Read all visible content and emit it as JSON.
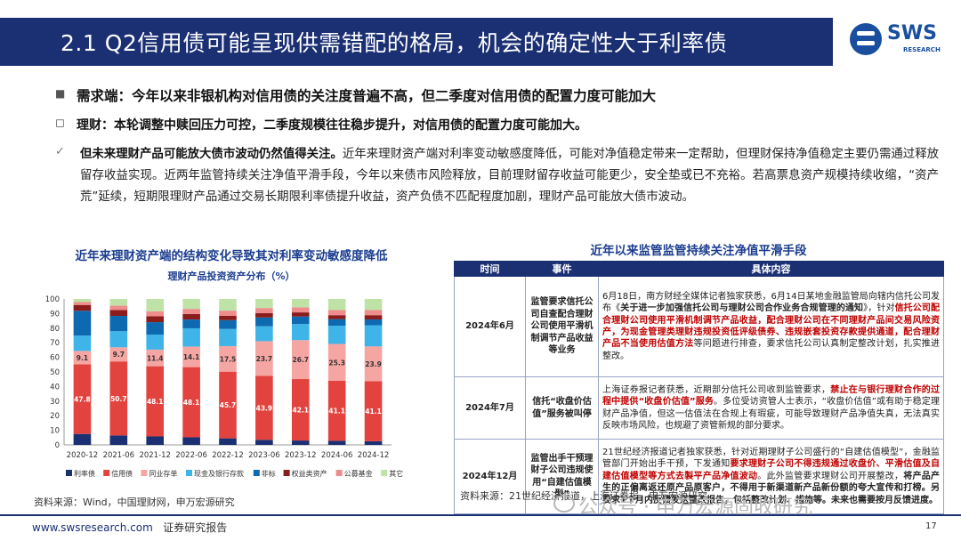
{
  "header": {
    "title": "2.1 Q2信用债可能呈现供需错配的格局，机会的确定性大于利率债",
    "logo_text": "SWS",
    "logo_sub": "RESEARCH"
  },
  "bullets": {
    "b1_marker": "■",
    "b1": "需求端：今年以来非银机构对信用债的关注度普遍不高，但二季度对信用债的配置力度可能加大",
    "b2_marker": "◻",
    "b2": "理财：本轮调整中赎回压力可控，二季度规模往往稳步提升，对信用债的配置力度可能加大。",
    "b3_marker": "✓",
    "b3_lead": "但未来理财产品可能放大债市波动仍然值得关注。",
    "b3_text": "近年来理财资产端对利率变动敏感度降低，可能对净值稳定带来一定帮助，但理财保持净值稳定主要仍需通过释放留存收益实现。近两年监管持续关注净值平滑手段，今年以来债市风险释放，目前理财留存收益可能更少，安全垫或已不充裕。若高票息资产规模持续收缩，“资产荒”延续，短期限理财产品通过交易长期限利率债提升收益，资产负债不匹配程度加剧，理财产品可能放大债市波动。"
  },
  "chart_title": "近年来理财资产端的结构变化导致其对利率变动敏感度降低",
  "chart_data": {
    "type": "bar",
    "stacked": true,
    "title": "理财产品投资资产分布（%）",
    "xlabel": "",
    "ylabel": "",
    "ylim": [
      0,
      100
    ],
    "yticks": [
      0,
      10,
      20,
      30,
      40,
      50,
      60,
      70,
      80,
      90,
      100
    ],
    "grid": false,
    "legend_position": "bottom",
    "categories": [
      "2020-12",
      "2021-06",
      "2021-12",
      "2022-06",
      "2022-12",
      "2023-06",
      "2023-12",
      "2024-06",
      "2024-12"
    ],
    "series": [
      {
        "name": "利率债",
        "color": "#1b2f73",
        "values": [
          7.5,
          6.5,
          5.8,
          5.2,
          4.5,
          3.5,
          3.0,
          2.8,
          2.5
        ]
      },
      {
        "name": "信用债",
        "color": "#e2433f",
        "values": [
          47.8,
          50.7,
          48.1,
          48.1,
          45.7,
          43.9,
          42.1,
          41.1,
          41.1
        ]
      },
      {
        "name": "同业存单",
        "color": "#f6a6a2",
        "values": [
          9.1,
          9.7,
          11.4,
          14.1,
          17.5,
          23.7,
          26.7,
          25.3,
          23.9
        ]
      },
      {
        "name": "现金及银行存款",
        "color": "#3fb4e8",
        "values": [
          10.5,
          11.0,
          10.3,
          12.5,
          11.8,
          10.2,
          11.0,
          12.5,
          14.5
        ]
      },
      {
        "name": "非标",
        "color": "#0e6ab0",
        "values": [
          17.0,
          10.5,
          8.5,
          6.0,
          6.0,
          6.0,
          5.2,
          4.5,
          4.0
        ]
      },
      {
        "name": "权益类资产",
        "color": "#8a1c1c",
        "values": [
          4.0,
          4.0,
          4.0,
          3.8,
          3.0,
          3.0,
          2.8,
          2.7,
          2.9
        ]
      },
      {
        "name": "公募基金",
        "color": "#ef8c8c",
        "values": [
          2.0,
          3.0,
          3.5,
          3.5,
          3.5,
          3.5,
          3.5,
          3.5,
          3.5
        ]
      },
      {
        "name": "其它",
        "color": "#bfe3a6",
        "values": [
          2.1,
          4.6,
          8.4,
          6.8,
          8.0,
          6.2,
          5.7,
          7.6,
          7.6
        ]
      }
    ],
    "labeled_series": [
      "信用债",
      "同业存单"
    ]
  },
  "table": {
    "title": "近年以来监管监管持续关注净值平滑手段",
    "headers": [
      "时间",
      "事件",
      "具体内容"
    ],
    "rows": [
      {
        "time": "2024年6月",
        "event": "监管要求信托公司自查配合理财公司使用平滑机制调节产品收益等业务",
        "d_plain1": "6月18日，南方财经全媒体记者独家获悉，6月14日某地金融监管局向辖内信托公司发布《",
        "d_bold1": "关于进一步加强信托公司与理财公司合作业务合规管理的通知",
        "d_plain2": "》，针对",
        "d_red1": "信托公司配合理财公司使用平滑机制调节产品收益，配合理财公司在不同理财产品间交易风险资产，为现金管理类理财违规投资低评级债券、违规嵌套投资存款提供通道，配合理财产品不当使用估值方法",
        "d_plain3": "等问题进行排查，要求信托公司认真制定整改计划，扎实推进整改。"
      },
      {
        "time": "2024年7月",
        "event": "信托“收盘价估值”服务被叫停",
        "d_plain1": "上海证券报记者获悉，近期部分信托公司收到监管要求，",
        "d_red1": "禁止在与银行理财合作的过程中提供“收盘价估值”服务",
        "d_plain2": "。多位受访资管人士表示，“收盘价估值”或有助于稳定理财产品净值，但这一估值法在合规上有瑕疵，可能导致理财产品净值失真，无法真实反映市场风险，也规避了资管新规的部分要求。"
      },
      {
        "time": "2024年12月",
        "event": "监管出手干预理财子公司违规使用“自建估值模型”",
        "d_plain1": "21世纪经济报道记者独家获悉，针对近期理财子公司盛行的“自建估值模型”，金融监管部门开始出手干预，下发通知",
        "d_red1": "要求理财子公司不得违规通过收盘价、平滑估值及自建估值模型等方式去製平产品净值波动",
        "d_plain2": "。此外监管要求理财公司开展整改，",
        "d_bold2": "将产品产生的正偏离返还原产品原客户，不得用于新渠道新产品新份额的夸大宣传和打榜。另要求1个月内反馈发送整改报告，包括整改计划、措施等。未来也需要按月反馈进度。",
        "d_plain3": ""
      }
    ]
  },
  "sources": {
    "left": "资料来源：Wind，中国理财网，申万宏源研究",
    "right": "资料来源：21世纪经济报道，上海证券报，申万宏源研究"
  },
  "watermark": "公众号 · 申万宏源固收研究",
  "footer": {
    "website": "www.swsresearch.com",
    "report_type": "证券研究报告",
    "page": "17"
  }
}
